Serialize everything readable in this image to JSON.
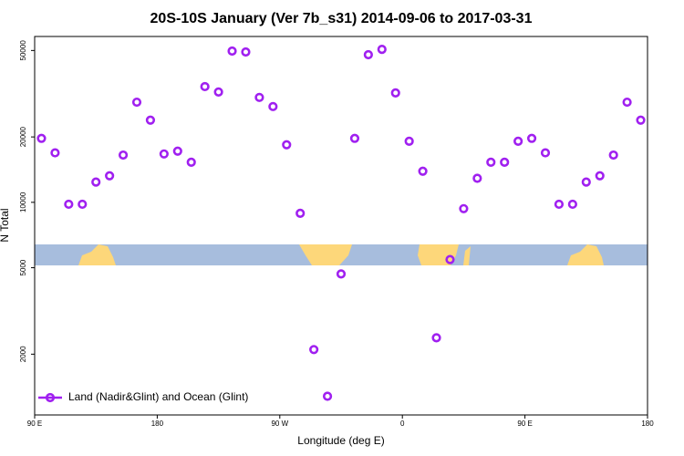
{
  "chart_data": {
    "type": "scatter",
    "title": "20S-10S January (Ver 7b_s31)   2014-09-06 to 2017-03-31",
    "x_label": "Longitude (deg E)",
    "y_label": "N Total",
    "y_scale": "log",
    "xlim": [
      90,
      540
    ],
    "ylim": [
      1050,
      58000
    ],
    "xticks": [
      {
        "value": 90,
        "label": "90 E"
      },
      180,
      {
        "value": 270,
        "label": "90 W"
      },
      {
        "value": 360,
        "label": "0"
      },
      {
        "value": 450,
        "label": "90 E"
      },
      {
        "value": 540,
        "label": "180"
      }
    ],
    "yticks": [
      2000,
      5000,
      10000,
      20000,
      50000
    ],
    "legend_position": "lower left",
    "series": [
      {
        "name": "Land (Nadir&Glint) and Ocean (Glint)",
        "color": "#a020f0",
        "x": [
          95,
          105,
          115,
          125,
          135,
          145,
          155,
          165,
          175,
          185,
          195,
          205,
          215,
          225,
          235,
          245,
          255,
          265,
          275,
          285,
          295,
          305,
          315,
          325,
          335,
          345,
          355,
          365,
          375,
          385,
          395,
          405,
          415,
          425,
          435,
          445,
          455,
          465,
          475,
          485,
          495,
          505,
          515,
          525,
          535
        ],
        "values": [
          19700,
          16900,
          9800,
          9800,
          12400,
          13250,
          16500,
          28900,
          23900,
          16700,
          17200,
          15300,
          34100,
          32200,
          49700,
          49200,
          30400,
          27600,
          18400,
          8900,
          2100,
          1280,
          4680,
          19700,
          47800,
          50600,
          31900,
          19100,
          13900,
          2380,
          5450,
          9350,
          12900,
          15300,
          15300,
          19100,
          19700,
          16900,
          9800,
          9800,
          12400,
          13250,
          16500,
          28900,
          23900
        ]
      }
    ]
  }
}
